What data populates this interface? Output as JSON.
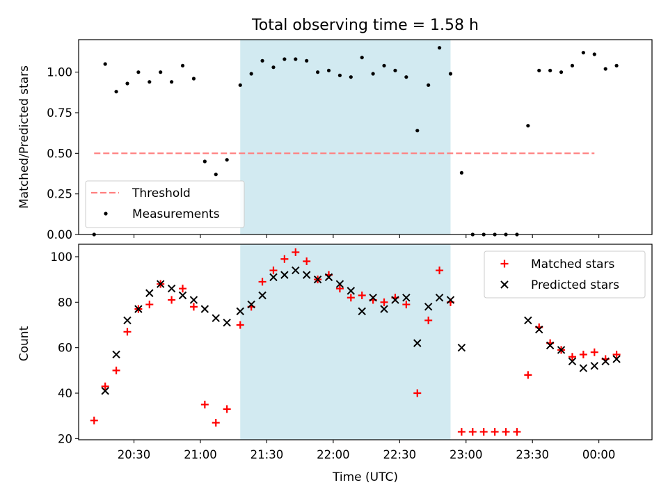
{
  "colors": {
    "threshold": "#ff7f7f",
    "measurements": "#000000",
    "matched": "#ff0000",
    "predicted": "#000000",
    "shade": "#add8e6"
  },
  "chart_data": [
    {
      "type": "scatter",
      "title": "Total observing time = 1.58 h",
      "xlabel": "",
      "ylabel": "Matched/Predicted stars",
      "ylim": [
        0,
        1.2
      ],
      "yticks": [
        0.0,
        0.25,
        0.5,
        0.75,
        1.0
      ],
      "yticklabels": [
        "0.00",
        "0.25",
        "0.50",
        "0.75",
        "1.00"
      ],
      "xlim": [
        "20:05",
        "00:24"
      ],
      "shaded_interval": [
        "21:18",
        "22:53"
      ],
      "legend": {
        "placement": "lower-left",
        "entries": [
          "Threshold",
          "Measurements"
        ]
      },
      "threshold": {
        "name": "Threshold",
        "y": 0.5,
        "x": [
          "20:12",
          "23:58"
        ]
      },
      "series": [
        {
          "name": "Measurements",
          "points": [
            [
              "20:12",
              0.0
            ],
            [
              "20:17",
              1.05
            ],
            [
              "20:22",
              0.88
            ],
            [
              "20:27",
              0.93
            ],
            [
              "20:32",
              1.0
            ],
            [
              "20:37",
              0.94
            ],
            [
              "20:42",
              1.0
            ],
            [
              "20:47",
              0.94
            ],
            [
              "20:52",
              1.04
            ],
            [
              "20:57",
              0.96
            ],
            [
              "21:02",
              0.45
            ],
            [
              "21:07",
              0.37
            ],
            [
              "21:12",
              0.46
            ],
            [
              "21:18",
              0.92
            ],
            [
              "21:23",
              0.99
            ],
            [
              "21:28",
              1.07
            ],
            [
              "21:33",
              1.03
            ],
            [
              "21:38",
              1.08
            ],
            [
              "21:43",
              1.08
            ],
            [
              "21:48",
              1.07
            ],
            [
              "21:53",
              1.0
            ],
            [
              "21:58",
              1.01
            ],
            [
              "22:03",
              0.98
            ],
            [
              "22:08",
              0.97
            ],
            [
              "22:13",
              1.09
            ],
            [
              "22:18",
              0.99
            ],
            [
              "22:23",
              1.04
            ],
            [
              "22:28",
              1.01
            ],
            [
              "22:33",
              0.97
            ],
            [
              "22:38",
              0.64
            ],
            [
              "22:43",
              0.92
            ],
            [
              "22:48",
              1.15
            ],
            [
              "22:53",
              0.99
            ],
            [
              "22:58",
              0.38
            ],
            [
              "23:03",
              0.0
            ],
            [
              "23:08",
              0.0
            ],
            [
              "23:13",
              0.0
            ],
            [
              "23:18",
              0.0
            ],
            [
              "23:23",
              0.0
            ],
            [
              "23:28",
              0.67
            ],
            [
              "23:33",
              1.01
            ],
            [
              "23:38",
              1.01
            ],
            [
              "23:43",
              1.0
            ],
            [
              "23:48",
              1.04
            ],
            [
              "23:53",
              1.12
            ],
            [
              "23:58",
              1.11
            ],
            [
              "00:03",
              1.02
            ],
            [
              "00:08",
              1.04
            ]
          ]
        }
      ]
    },
    {
      "type": "scatter",
      "title": "",
      "xlabel": "Time (UTC)",
      "ylabel": "Count",
      "ylim": [
        19.5,
        105.5
      ],
      "yticks": [
        20,
        40,
        60,
        80,
        100
      ],
      "yticklabels": [
        "20",
        "40",
        "60",
        "80",
        "100"
      ],
      "xlim": [
        "20:05",
        "00:24"
      ],
      "xticks": [
        "20:30",
        "21:00",
        "21:30",
        "22:00",
        "22:30",
        "23:00",
        "23:30",
        "00:00"
      ],
      "xticklabels": [
        "20:30",
        "21:00",
        "21:30",
        "22:00",
        "22:30",
        "23:00",
        "23:30",
        "00:00"
      ],
      "shaded_interval": [
        "21:18",
        "22:53"
      ],
      "legend": {
        "placement": "upper-right",
        "entries": [
          "Matched stars",
          "Predicted stars"
        ]
      },
      "series": [
        {
          "name": "Matched stars",
          "marker": "plus",
          "points": [
            [
              "20:12",
              28
            ],
            [
              "20:17",
              43
            ],
            [
              "20:22",
              50
            ],
            [
              "20:27",
              67
            ],
            [
              "20:32",
              77
            ],
            [
              "20:37",
              79
            ],
            [
              "20:42",
              88
            ],
            [
              "20:47",
              81
            ],
            [
              "20:52",
              86
            ],
            [
              "20:57",
              78
            ],
            [
              "21:02",
              35
            ],
            [
              "21:07",
              27
            ],
            [
              "21:12",
              33
            ],
            [
              "21:18",
              70
            ],
            [
              "21:23",
              78
            ],
            [
              "21:28",
              89
            ],
            [
              "21:33",
              94
            ],
            [
              "21:38",
              99
            ],
            [
              "21:43",
              102
            ],
            [
              "21:48",
              98
            ],
            [
              "21:53",
              90
            ],
            [
              "21:58",
              92
            ],
            [
              "22:03",
              86
            ],
            [
              "22:08",
              82
            ],
            [
              "22:13",
              83
            ],
            [
              "22:18",
              81
            ],
            [
              "22:23",
              80
            ],
            [
              "22:28",
              82
            ],
            [
              "22:33",
              79
            ],
            [
              "22:38",
              40
            ],
            [
              "22:43",
              72
            ],
            [
              "22:48",
              94
            ],
            [
              "22:53",
              80
            ],
            [
              "22:58",
              23
            ],
            [
              "23:03",
              23
            ],
            [
              "23:08",
              23
            ],
            [
              "23:13",
              23
            ],
            [
              "23:18",
              23
            ],
            [
              "23:23",
              23
            ],
            [
              "23:28",
              48
            ],
            [
              "23:33",
              69
            ],
            [
              "23:38",
              62
            ],
            [
              "23:43",
              59
            ],
            [
              "23:48",
              56
            ],
            [
              "23:53",
              57
            ],
            [
              "23:58",
              58
            ],
            [
              "00:03",
              55
            ],
            [
              "00:08",
              57
            ]
          ]
        },
        {
          "name": "Predicted stars",
          "marker": "x",
          "points": [
            [
              "20:17",
              41
            ],
            [
              "20:22",
              57
            ],
            [
              "20:27",
              72
            ],
            [
              "20:32",
              77
            ],
            [
              "20:37",
              84
            ],
            [
              "20:42",
              88
            ],
            [
              "20:47",
              86
            ],
            [
              "20:52",
              83
            ],
            [
              "20:57",
              81
            ],
            [
              "21:02",
              77
            ],
            [
              "21:07",
              73
            ],
            [
              "21:12",
              71
            ],
            [
              "21:18",
              76
            ],
            [
              "21:23",
              79
            ],
            [
              "21:28",
              83
            ],
            [
              "21:33",
              91
            ],
            [
              "21:38",
              92
            ],
            [
              "21:43",
              94
            ],
            [
              "21:48",
              92
            ],
            [
              "21:53",
              90
            ],
            [
              "21:58",
              91
            ],
            [
              "22:03",
              88
            ],
            [
              "22:08",
              85
            ],
            [
              "22:13",
              76
            ],
            [
              "22:18",
              82
            ],
            [
              "22:23",
              77
            ],
            [
              "22:28",
              81
            ],
            [
              "22:33",
              82
            ],
            [
              "22:38",
              62
            ],
            [
              "22:43",
              78
            ],
            [
              "22:48",
              82
            ],
            [
              "22:53",
              81
            ],
            [
              "22:58",
              60
            ],
            [
              "23:28",
              72
            ],
            [
              "23:33",
              68
            ],
            [
              "23:38",
              61
            ],
            [
              "23:43",
              59
            ],
            [
              "23:48",
              54
            ],
            [
              "23:53",
              51
            ],
            [
              "23:58",
              52
            ],
            [
              "00:03",
              54
            ],
            [
              "00:08",
              55
            ]
          ]
        }
      ]
    }
  ]
}
